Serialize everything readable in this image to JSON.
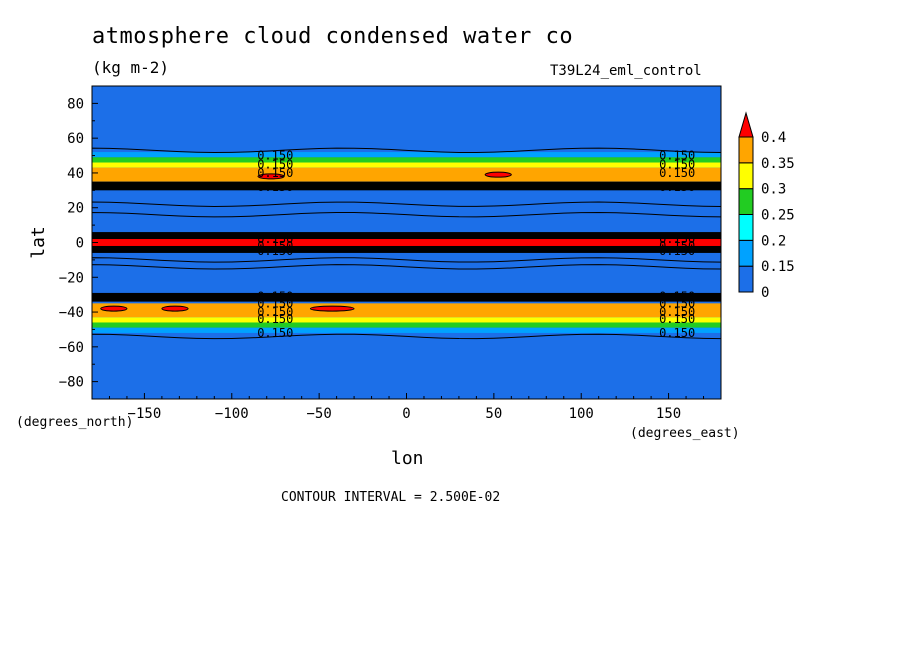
{
  "chart_data": {
    "type": "heatmap",
    "title": "atmosphere cloud condensed water co",
    "units": "(kg m-2)",
    "experiment": "T39L24_eml_control",
    "xlabel": "lon",
    "ylabel": "lat",
    "x_unit_label": "(degrees_east)",
    "y_unit_label": "(degrees_north)",
    "xlim": [
      -180,
      180
    ],
    "ylim": [
      -90,
      90
    ],
    "x_ticks": [
      -150,
      -100,
      -50,
      0,
      50,
      100,
      150
    ],
    "y_ticks": [
      80,
      60,
      40,
      20,
      0,
      -20,
      -40,
      -60,
      -80
    ],
    "contour_interval_text": "CONTOUR INTERVAL = 2.500E-02",
    "contour_label_value": "0.150",
    "legend": {
      "position": "right",
      "labels": [
        "0.4",
        "0.35",
        "0.3",
        "0.25",
        "0.2",
        "0.15",
        "0"
      ],
      "bins": [
        {
          "range": [
            0,
            0.15
          ],
          "color": "#1c6fe8"
        },
        {
          "range": [
            0.15,
            0.2
          ],
          "color": "#00a2ff"
        },
        {
          "range": [
            0.2,
            0.25
          ],
          "color": "#00ffff"
        },
        {
          "range": [
            0.25,
            0.3
          ],
          "color": "#22cc22"
        },
        {
          "range": [
            0.3,
            0.35
          ],
          "color": "#ffff00"
        },
        {
          "range": [
            0.35,
            0.4
          ],
          "color": "#ffa500"
        },
        {
          "range": [
            0.4,
            null
          ],
          "color": "#ff0000"
        }
      ]
    },
    "background_value_color": "#1c6fe8",
    "zonal_bands": [
      {
        "lat_range": [
          49,
          52
        ],
        "value_class": "0.15-0.2",
        "color": "#00a2ff"
      },
      {
        "lat_range": [
          46,
          49
        ],
        "value_class": "0.25-0.3",
        "color": "#22cc22"
      },
      {
        "lat_range": [
          43,
          46
        ],
        "value_class": "0.3-0.35",
        "color": "#ffff00"
      },
      {
        "lat_range": [
          35,
          43
        ],
        "value_class": "0.35-0.4",
        "color": "#ffa500"
      },
      {
        "lat_range": [
          30,
          35
        ],
        "value_class": "contour cluster",
        "color": "#000000"
      },
      {
        "lat_range": [
          -2,
          2
        ],
        "value_class": ">0.4",
        "color": "#ff0000"
      },
      {
        "lat_range": [
          -6,
          6
        ],
        "value_class": "contour cluster",
        "color": "#000000"
      },
      {
        "lat_range": [
          -34,
          -29
        ],
        "value_class": "contour cluster",
        "color": "#000000"
      },
      {
        "lat_range": [
          -43,
          -35
        ],
        "value_class": "0.35-0.4",
        "color": "#ffa500"
      },
      {
        "lat_range": [
          -46,
          -43
        ],
        "value_class": "0.3-0.35",
        "color": "#ffff00"
      },
      {
        "lat_range": [
          -49,
          -46
        ],
        "value_class": "0.25-0.3",
        "color": "#22cc22"
      },
      {
        "lat_range": [
          -52,
          -49
        ],
        "value_class": "0.15-0.2",
        "color": "#00a2ff"
      }
    ],
    "maxima": [
      {
        "lon_range": [
          -85,
          -70
        ],
        "lat": 38,
        "color": "#ff0000"
      },
      {
        "lon_range": [
          45,
          60
        ],
        "lat": 39,
        "color": "#ff0000"
      },
      {
        "lon_range": [
          -175,
          -160
        ],
        "lat": -38,
        "color": "#ff0000"
      },
      {
        "lon_range": [
          -140,
          -125
        ],
        "lat": -38,
        "color": "#ff0000"
      },
      {
        "lon_range": [
          -55,
          -30
        ],
        "lat": -38,
        "color": "#ff0000"
      }
    ],
    "grid": false
  }
}
